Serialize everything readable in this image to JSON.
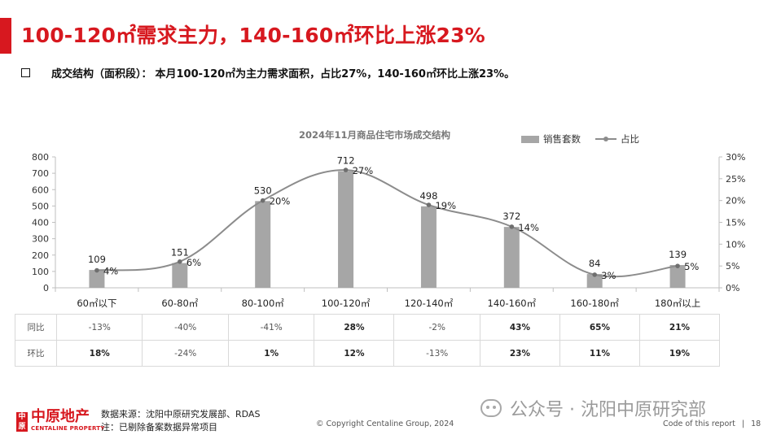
{
  "header": {
    "title": "100-120㎡需求主力，140-160㎡环比上涨23%",
    "bullet_label": "成交结构（面积段）：",
    "bullet_text": "本月100-120㎡为主力需求面积，占比27%，140-160㎡环比上涨23%。"
  },
  "colors": {
    "accent": "#d7181f",
    "bar": "#a6a6a6",
    "line": "#8c8c8c"
  },
  "chart_data": {
    "type": "bar",
    "title": "2024年11月商品住宅市场成交结构",
    "categories": [
      "60㎡以下",
      "60-80㎡",
      "80-100㎡",
      "100-120㎡",
      "120-140㎡",
      "140-160㎡",
      "160-180㎡",
      "180㎡以上"
    ],
    "series": [
      {
        "name": "销售套数",
        "type": "bar",
        "axis": "left",
        "values": [
          109,
          151,
          530,
          712,
          498,
          372,
          84,
          139
        ],
        "labels": [
          "109",
          "151",
          "530",
          "712",
          "498",
          "372",
          "84",
          "139"
        ]
      },
      {
        "name": "占比",
        "type": "line",
        "axis": "right",
        "values": [
          4,
          6,
          20,
          27,
          19,
          14,
          3,
          5
        ],
        "labels": [
          "4%",
          "6%",
          "20%",
          "27%",
          "19%",
          "14%",
          "3%",
          "5%"
        ]
      }
    ],
    "y_left": {
      "min": 0,
      "max": 800,
      "ticks": [
        "0",
        "100",
        "200",
        "300",
        "400",
        "500",
        "600",
        "700",
        "800"
      ]
    },
    "y_right": {
      "min": 0,
      "max": 30,
      "ticks": [
        "0%",
        "5%",
        "10%",
        "15%",
        "20%",
        "25%",
        "30%"
      ]
    },
    "legend_position": "top-right",
    "grid": false
  },
  "table": {
    "rows": [
      {
        "label": "同比",
        "values": [
          "-13%",
          "-40%",
          "-41%",
          "28%",
          "-2%",
          "43%",
          "65%",
          "21%"
        ],
        "bold": [
          false,
          false,
          false,
          true,
          false,
          true,
          true,
          true
        ]
      },
      {
        "label": "环比",
        "values": [
          "18%",
          "-24%",
          "1%",
          "12%",
          "-13%",
          "23%",
          "11%",
          "19%"
        ],
        "bold": [
          true,
          false,
          true,
          true,
          false,
          true,
          true,
          true
        ]
      }
    ]
  },
  "footer": {
    "logo_mark": "中原",
    "logo_cn": "中原地产",
    "logo_en": "CENTALINE PROPERTY",
    "source_line1": "数据来源：沈阳中原研究发展部、RDAS",
    "source_line2": "注：已剔除备案数据异常项目",
    "copyright": "© Copyright  Centaline Group, 2024",
    "watermark": "公众号 · 沈阳中原研究部",
    "code_label": "Code of this report",
    "page_number": "18"
  }
}
